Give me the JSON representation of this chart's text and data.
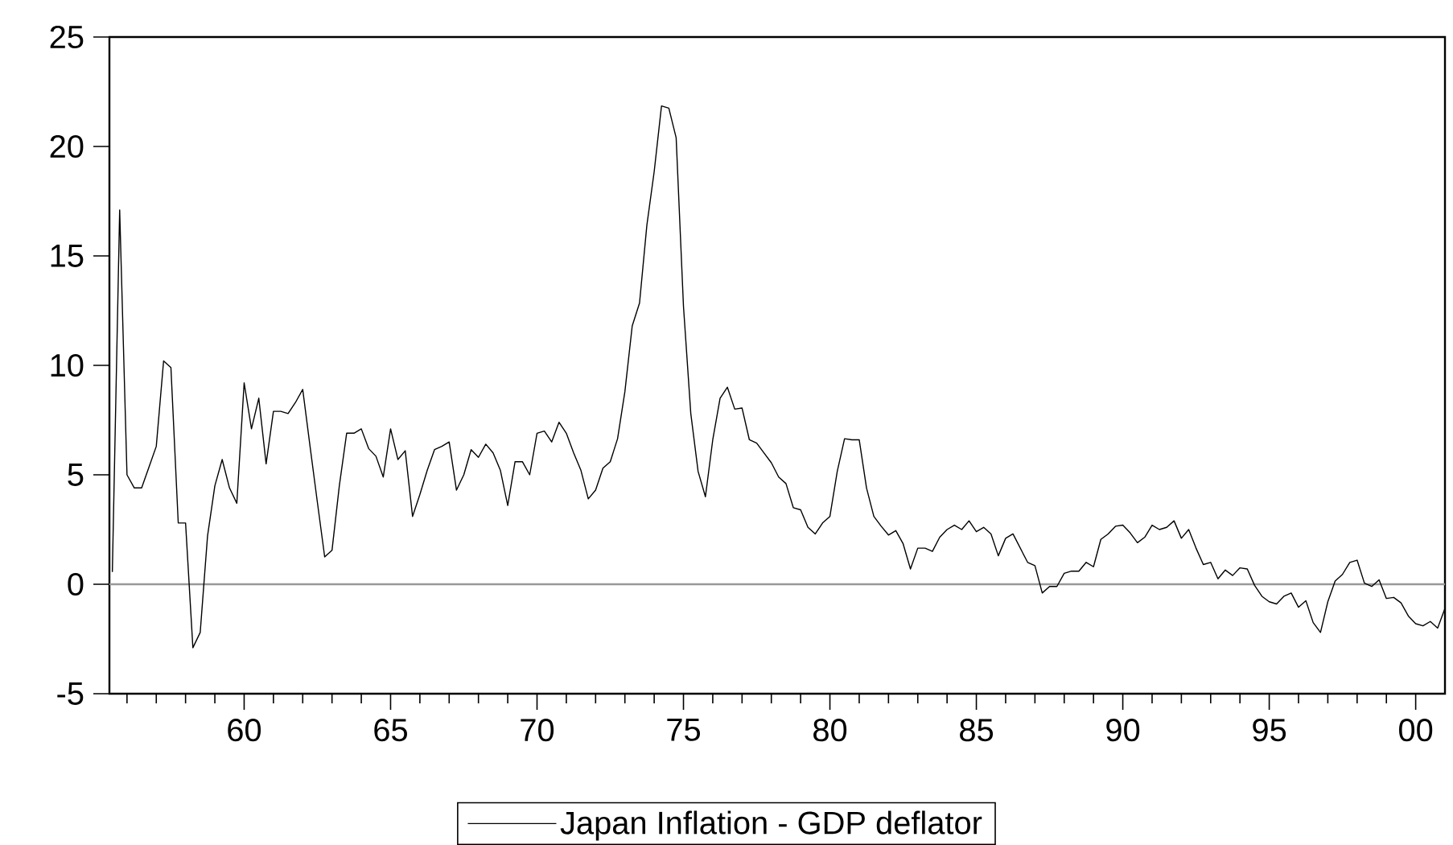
{
  "chart_data": {
    "type": "line",
    "x": [
      1955.5,
      1955.75,
      1956,
      1956.25,
      1956.5,
      1956.75,
      1957,
      1957.25,
      1957.5,
      1957.75,
      1958,
      1958.25,
      1958.5,
      1958.75,
      1959,
      1959.25,
      1959.5,
      1959.75,
      1960,
      1960.25,
      1960.5,
      1960.75,
      1961,
      1961.25,
      1961.5,
      1961.75,
      1962,
      1962.25,
      1962.5,
      1962.75,
      1963,
      1963.25,
      1963.5,
      1963.75,
      1964,
      1964.25,
      1964.5,
      1964.75,
      1965,
      1965.25,
      1965.5,
      1965.75,
      1966,
      1966.25,
      1966.5,
      1966.75,
      1967,
      1967.25,
      1967.5,
      1967.75,
      1968,
      1968.25,
      1968.5,
      1968.75,
      1969,
      1969.25,
      1969.5,
      1969.75,
      1970,
      1970.25,
      1970.5,
      1970.75,
      1971,
      1971.25,
      1971.5,
      1971.75,
      1972,
      1972.25,
      1972.5,
      1972.75,
      1973,
      1973.25,
      1973.5,
      1973.75,
      1974,
      1974.25,
      1974.5,
      1974.75,
      1975,
      1975.25,
      1975.5,
      1975.75,
      1976,
      1976.25,
      1976.5,
      1976.75,
      1977,
      1977.25,
      1977.5,
      1977.75,
      1978,
      1978.25,
      1978.5,
      1978.75,
      1979,
      1979.25,
      1979.5,
      1979.75,
      1980,
      1980.25,
      1980.5,
      1980.75,
      1981,
      1981.25,
      1981.5,
      1981.75,
      1982,
      1982.25,
      1982.5,
      1982.75,
      1983,
      1983.25,
      1983.5,
      1983.75,
      1984,
      1984.25,
      1984.5,
      1984.75,
      1985,
      1985.25,
      1985.5,
      1985.75,
      1986,
      1986.25,
      1986.5,
      1986.75,
      1987,
      1987.25,
      1987.5,
      1987.75,
      1988,
      1988.25,
      1988.5,
      1988.75,
      1989,
      1989.25,
      1989.5,
      1989.75,
      1990,
      1990.25,
      1990.5,
      1990.75,
      1991,
      1991.25,
      1991.5,
      1991.75,
      1992,
      1992.25,
      1992.5,
      1992.75,
      1993,
      1993.25,
      1993.5,
      1993.75,
      1994,
      1994.25,
      1994.5,
      1994.75,
      1995,
      1995.25,
      1995.5,
      1995.75,
      1996,
      1996.25,
      1996.5,
      1996.75,
      1997,
      1997.25,
      1997.5,
      1997.75,
      1998,
      1998.25,
      1998.5,
      1998.75,
      1999,
      1999.25,
      1999.5,
      1999.75,
      2000,
      2000.25,
      2000.5,
      2000.75,
      2001
    ],
    "series": [
      {
        "name": "Japan Inflation - GDP deflator",
        "color": "#000000",
        "values": [
          0.56,
          17.1,
          5.0,
          4.4,
          4.4,
          5.35,
          6.3,
          10.2,
          9.9,
          2.8,
          2.8,
          -2.9,
          -2.2,
          2.2,
          4.5,
          5.7,
          4.4,
          3.7,
          9.2,
          7.1,
          8.5,
          5.5,
          7.9,
          7.9,
          7.8,
          8.3,
          8.9,
          6.3,
          3.75,
          1.25,
          1.55,
          4.5,
          6.9,
          6.9,
          7.1,
          6.2,
          5.85,
          4.9,
          7.1,
          5.7,
          6.1,
          3.1,
          4.1,
          5.2,
          6.15,
          6.3,
          6.5,
          4.3,
          5.0,
          6.15,
          5.8,
          6.4,
          6.0,
          5.2,
          3.6,
          5.6,
          5.6,
          5.0,
          6.9,
          7.0,
          6.5,
          7.4,
          6.9,
          6.0,
          5.2,
          3.9,
          4.3,
          5.3,
          5.6,
          6.65,
          8.8,
          11.8,
          12.85,
          16.4,
          18.85,
          21.85,
          21.75,
          20.4,
          12.7,
          7.8,
          5.15,
          4.0,
          6.6,
          8.5,
          9.0,
          8.0,
          8.05,
          6.6,
          6.45,
          6.0,
          5.55,
          4.9,
          4.6,
          3.5,
          3.4,
          2.6,
          2.3,
          2.8,
          3.1,
          5.15,
          6.65,
          6.6,
          6.6,
          4.4,
          3.1,
          2.65,
          2.25,
          2.45,
          1.85,
          0.7,
          1.65,
          1.65,
          1.5,
          2.15,
          2.5,
          2.7,
          2.5,
          2.9,
          2.4,
          2.6,
          2.3,
          1.3,
          2.1,
          2.3,
          1.65,
          1.0,
          0.85,
          -0.4,
          -0.1,
          -0.1,
          0.5,
          0.6,
          0.6,
          1.0,
          0.8,
          2.05,
          2.3,
          2.65,
          2.7,
          2.35,
          1.9,
          2.15,
          2.7,
          2.5,
          2.6,
          2.9,
          2.1,
          2.5,
          1.65,
          0.9,
          1.0,
          0.25,
          0.65,
          0.4,
          0.75,
          0.7,
          -0.05,
          -0.55,
          -0.8,
          -0.9,
          -0.55,
          -0.4,
          -1.05,
          -0.75,
          -1.75,
          -2.2,
          -0.8,
          0.15,
          0.45,
          1.0,
          1.1,
          0.05,
          -0.1,
          0.2,
          -0.65,
          -0.6,
          -0.85,
          -1.45,
          -1.8,
          -1.9,
          -1.7,
          -2.0,
          -1.1
        ]
      }
    ],
    "xlim": [
      1955.4,
      2001
    ],
    "xticks": [
      {
        "value": 1956,
        "label": null
      },
      {
        "value": 1957,
        "label": null
      },
      {
        "value": 1958,
        "label": null
      },
      {
        "value": 1959,
        "label": null
      },
      {
        "value": 1960,
        "label": "60"
      },
      {
        "value": 1961,
        "label": null
      },
      {
        "value": 1962,
        "label": null
      },
      {
        "value": 1963,
        "label": null
      },
      {
        "value": 1964,
        "label": null
      },
      {
        "value": 1965,
        "label": "65"
      },
      {
        "value": 1966,
        "label": null
      },
      {
        "value": 1967,
        "label": null
      },
      {
        "value": 1968,
        "label": null
      },
      {
        "value": 1969,
        "label": null
      },
      {
        "value": 1970,
        "label": "70"
      },
      {
        "value": 1971,
        "label": null
      },
      {
        "value": 1972,
        "label": null
      },
      {
        "value": 1973,
        "label": null
      },
      {
        "value": 1974,
        "label": null
      },
      {
        "value": 1975,
        "label": "75"
      },
      {
        "value": 1976,
        "label": null
      },
      {
        "value": 1977,
        "label": null
      },
      {
        "value": 1978,
        "label": null
      },
      {
        "value": 1979,
        "label": null
      },
      {
        "value": 1980,
        "label": "80"
      },
      {
        "value": 1981,
        "label": null
      },
      {
        "value": 1982,
        "label": null
      },
      {
        "value": 1983,
        "label": null
      },
      {
        "value": 1984,
        "label": null
      },
      {
        "value": 1985,
        "label": "85"
      },
      {
        "value": 1986,
        "label": null
      },
      {
        "value": 1987,
        "label": null
      },
      {
        "value": 1988,
        "label": null
      },
      {
        "value": 1989,
        "label": null
      },
      {
        "value": 1990,
        "label": "90"
      },
      {
        "value": 1991,
        "label": null
      },
      {
        "value": 1992,
        "label": null
      },
      {
        "value": 1993,
        "label": null
      },
      {
        "value": 1994,
        "label": null
      },
      {
        "value": 1995,
        "label": "95"
      },
      {
        "value": 1996,
        "label": null
      },
      {
        "value": 1997,
        "label": null
      },
      {
        "value": 1998,
        "label": null
      },
      {
        "value": 1999,
        "label": null
      },
      {
        "value": 2000,
        "label": "00"
      }
    ],
    "ylim": [
      -5,
      25
    ],
    "yticks": [
      -5,
      0,
      5,
      10,
      15,
      20,
      25
    ],
    "ref_lines": [
      {
        "axis": "y",
        "value": 0,
        "color": "#999999"
      }
    ],
    "grid": false,
    "legend": "bottom"
  }
}
